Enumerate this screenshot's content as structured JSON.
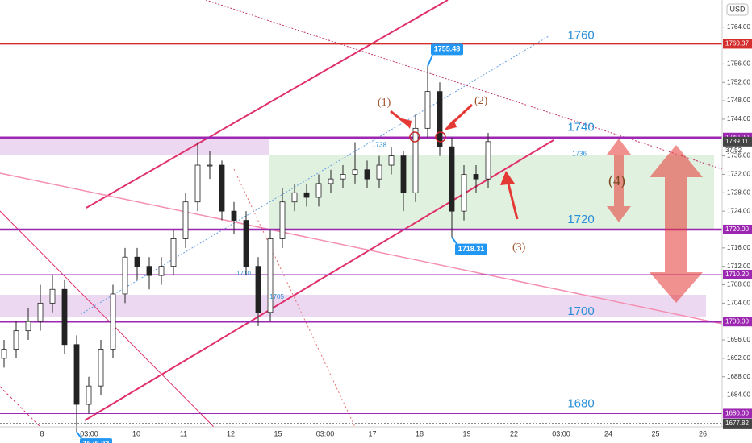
{
  "chart_data": {
    "type": "candlestick",
    "currency": "USD",
    "countdown": "37:52",
    "ylim": [
      1677.1,
      1769.9
    ],
    "yticks": [
      {
        "value": 1684,
        "label": "1684.00"
      },
      {
        "value": 1688,
        "label": "1688.00"
      },
      {
        "value": 1692,
        "label": "1692.00"
      },
      {
        "value": 1696,
        "label": "1696.00"
      },
      {
        "value": 1704,
        "label": "1704.00"
      },
      {
        "value": 1708,
        "label": "1708.00"
      },
      {
        "value": 1712,
        "label": "1712.00"
      },
      {
        "value": 1716,
        "label": "1716.00"
      },
      {
        "value": 1724,
        "label": "1724.00"
      },
      {
        "value": 1728,
        "label": "1728.00"
      },
      {
        "value": 1732,
        "label": "1732.00"
      },
      {
        "value": 1736,
        "label": "1736.00"
      },
      {
        "value": 1744,
        "label": "1744.00"
      },
      {
        "value": 1748,
        "label": "1748.00"
      },
      {
        "value": 1752,
        "label": "1752.00"
      },
      {
        "value": 1756,
        "label": "1756.00"
      },
      {
        "value": 1764,
        "label": "1764.00"
      }
    ],
    "categories": [
      "8",
      "03:00",
      "10",
      "11",
      "12",
      "15",
      "03:00",
      "17",
      "18",
      "19",
      "22",
      "03:00",
      "24",
      "25",
      "26"
    ],
    "open": [
      1692,
      1694,
      1698,
      1700,
      1704,
      1707,
      1695,
      1682,
      1686,
      1694,
      1706,
      1714,
      1712,
      1710,
      1712,
      1718,
      1726,
      1734,
      1734,
      1724,
      1722,
      1712,
      1702,
      1718,
      1726,
      1728,
      1727,
      1730,
      1731,
      1732,
      1733,
      1731,
      1734,
      1736,
      1728,
      1742,
      1750,
      1738,
      1724,
      1732,
      1731
    ],
    "high": [
      1696,
      1700,
      1703,
      1708,
      1710,
      1709,
      1697,
      1688,
      1696,
      1708,
      1716,
      1716,
      1714,
      1714,
      1720,
      1728,
      1739,
      1737,
      1735,
      1726,
      1724,
      1714,
      1720,
      1729,
      1730,
      1730,
      1732,
      1733,
      1734,
      1739,
      1735,
      1736,
      1738,
      1737,
      1745,
      1755.48,
      1752,
      1740,
      1734,
      1734,
      1741
    ],
    "low": [
      1690,
      1692,
      1696,
      1698,
      1702,
      1693,
      1676.02,
      1680,
      1684,
      1692,
      1704,
      1709,
      1707,
      1708,
      1710,
      1716,
      1724,
      1731,
      1722,
      1719,
      1710,
      1699,
      1700,
      1716,
      1724,
      1725,
      1725,
      1728,
      1729,
      1730,
      1729,
      1729,
      1732,
      1724,
      1726,
      1740,
      1736,
      1718.31,
      1722,
      1728,
      1729
    ],
    "close": [
      1694,
      1698,
      1700,
      1704,
      1707,
      1695,
      1682,
      1686,
      1694,
      1706,
      1714,
      1712,
      1710,
      1712,
      1718,
      1726,
      1734,
      1734,
      1724,
      1722,
      1712,
      1702,
      1718,
      1726,
      1728,
      1727,
      1730,
      1731,
      1732,
      1733,
      1731,
      1734,
      1736,
      1728,
      1742,
      1750,
      1738,
      1724,
      1732,
      1731,
      1739.11
    ],
    "levels": [
      {
        "value": 1760.37,
        "label": "1760.37",
        "color": "#d32f2f"
      },
      {
        "value": 1740,
        "label": "1740.00",
        "color": "#9c27b0"
      },
      {
        "value": 1739.11,
        "label": "1739.11",
        "color": "#444444"
      },
      {
        "value": 1720,
        "label": "1720.00",
        "color": "#9c27b0"
      },
      {
        "value": 1710.2,
        "label": "1710.20",
        "color": "#9c27b0"
      },
      {
        "value": 1700,
        "label": "1700.00",
        "color": "#9c27b0"
      },
      {
        "value": 1680,
        "label": "1680.00",
        "color": "#9c27b0"
      },
      {
        "value": 1677.82,
        "label": "1677.82",
        "color": "#444444"
      }
    ],
    "level_labels": [
      1760,
      1740,
      1720,
      1700,
      1680
    ],
    "small_labels": [
      1736,
      1738,
      1710,
      1705
    ],
    "callouts": [
      1755.48,
      1718.31,
      1676.02
    ],
    "annotations": [
      "(1)",
      "(2)",
      "(3)",
      "(4)"
    ]
  }
}
